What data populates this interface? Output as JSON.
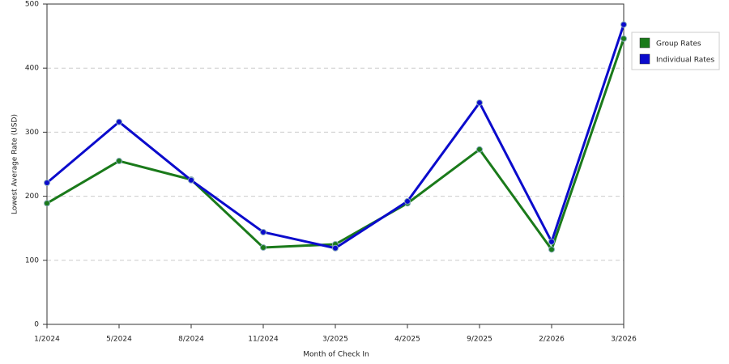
{
  "chart_data": {
    "type": "line",
    "x_label": "Month of Check In",
    "y_label": "Lowest Average Rate (USD)",
    "categories": [
      "1/2024",
      "5/2024",
      "8/2024",
      "11/2024",
      "3/2025",
      "4/2025",
      "9/2025",
      "2/2026",
      "3/2026"
    ],
    "series": [
      {
        "name": "Group Rates",
        "color": "#1a7a1a",
        "values": [
          189,
          255,
          226,
          120,
          125,
          189,
          273,
          117,
          446
        ]
      },
      {
        "name": "Individual Rates",
        "color": "#0b0bcc",
        "values": [
          221,
          316,
          225,
          144,
          119,
          192,
          346,
          129,
          468
        ]
      }
    ],
    "ylim": [
      0,
      500
    ],
    "yticks": [
      0,
      100,
      200,
      300,
      400,
      500
    ],
    "grid": true,
    "legend": "right"
  }
}
